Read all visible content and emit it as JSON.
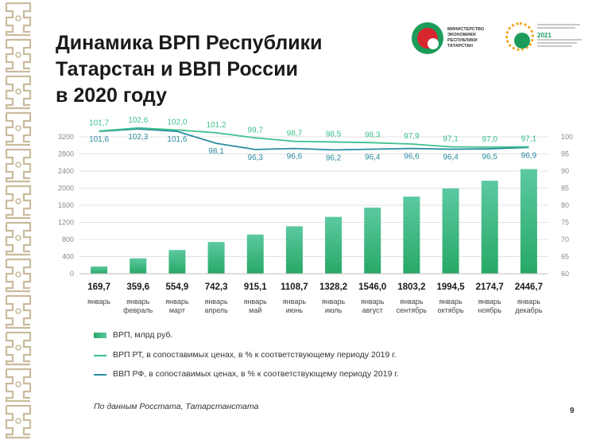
{
  "title_lines": [
    "Динамика ВРП Республики",
    "Татарстан и ВВП России",
    "в 2020 году"
  ],
  "logo_ministry_text": "МИНИСТЕРСТВО ЭКОНОМИКИ РЕСПУБЛИКИ ТАТАРСТАН",
  "logo_year_text": "2021",
  "colors": {
    "bar_top": "#5cc9a1",
    "bar_bottom": "#27a866",
    "line_rt": "#3cc18a",
    "line_rf": "#2a8ba0",
    "accent": "#1b9c5a"
  },
  "chart_data": {
    "type": "bar",
    "categories": [
      "январь",
      "январь февраль",
      "январь март",
      "январь апрель",
      "январь май",
      "январь июнь",
      "январь июль",
      "январь август",
      "январь сентябрь",
      "январь октябрь",
      "январь ноябрь",
      "январь декабрь"
    ],
    "category_lines": [
      [
        "январь"
      ],
      [
        "январь",
        "февраль"
      ],
      [
        "январь",
        "март"
      ],
      [
        "январь",
        "апрель"
      ],
      [
        "январь",
        "май"
      ],
      [
        "январь",
        "июнь"
      ],
      [
        "январь",
        "июль"
      ],
      [
        "январь",
        "август"
      ],
      [
        "январь",
        "сентябрь"
      ],
      [
        "январь",
        "октябрь"
      ],
      [
        "январь",
        "ноябрь"
      ],
      [
        "январь",
        "декабрь"
      ]
    ],
    "bar_labels": [
      "169,7",
      "359,6",
      "554,9",
      "742,3",
      "915,1",
      "1108,7",
      "1328,2",
      "1546,0",
      "1803,2",
      "1994,5",
      "2174,7",
      "2446,7"
    ],
    "series": [
      {
        "name": "ВРП, млрд руб.",
        "kind": "bar",
        "axis": "left",
        "values": [
          169.7,
          359.6,
          554.9,
          742.3,
          915.1,
          1108.7,
          1328.2,
          1546.0,
          1803.2,
          1994.5,
          2174.7,
          2446.7
        ]
      },
      {
        "name": "ВРП РТ, в сопоставимых ценах, в % к соответствующему периоду 2019 г.",
        "kind": "line",
        "axis": "right",
        "values": [
          101.7,
          102.6,
          102.0,
          101.2,
          99.7,
          98.7,
          98.5,
          98.3,
          97.9,
          97.1,
          97.0,
          97.1
        ],
        "labels": [
          "101,7",
          "102,6",
          "102,0",
          "101,2",
          "99,7",
          "98,7",
          "98,5",
          "98,3",
          "97,9",
          "97,1",
          "97,0",
          "97,1"
        ]
      },
      {
        "name": "ВВП РФ, в сопоставимых ценах, в % к соответствующему периоду 2019 г.",
        "kind": "line",
        "axis": "right",
        "values": [
          101.6,
          102.3,
          101.6,
          98.1,
          96.3,
          96.6,
          96.2,
          96.4,
          96.6,
          96.4,
          96.5,
          96.9
        ],
        "labels": [
          "101,6",
          "102,3",
          "101,6",
          "98,1",
          "96,3",
          "96,6",
          "96,2",
          "96,4",
          "96,6",
          "96,4",
          "96,5",
          "96,9"
        ]
      }
    ],
    "left_axis": {
      "ylim": [
        0,
        3200
      ],
      "ticks": [
        0,
        400,
        800,
        1200,
        1600,
        2000,
        2400,
        2800,
        3200
      ]
    },
    "right_axis": {
      "ylim": [
        60,
        100
      ],
      "ticks": [
        60,
        65,
        70,
        75,
        80,
        85,
        90,
        95,
        100
      ]
    },
    "grid": true,
    "legend_position": "bottom-left"
  },
  "source_note": "По данным Росстата, Татарстанстата",
  "page_number": "9"
}
